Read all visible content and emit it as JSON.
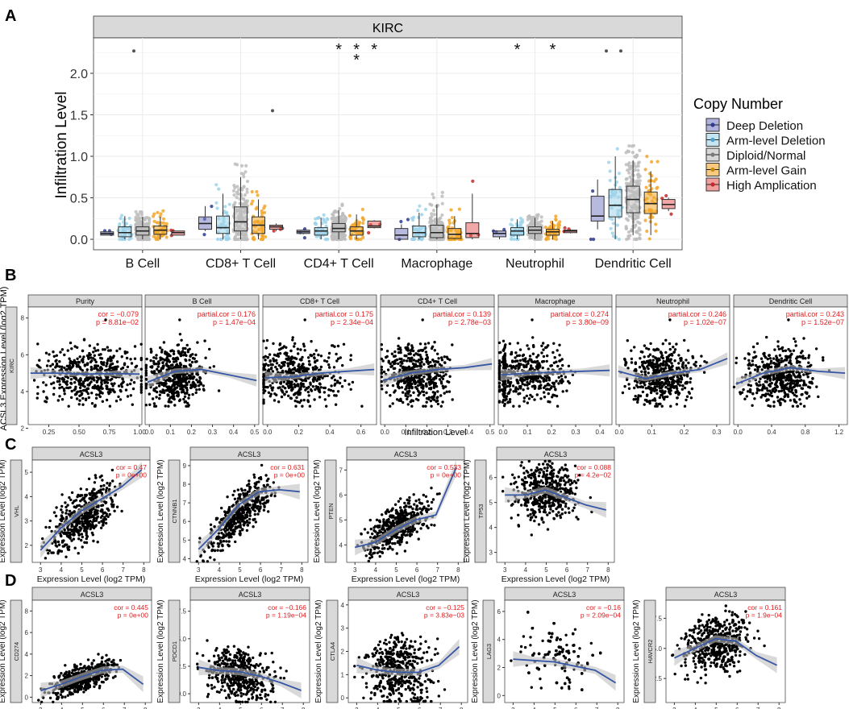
{
  "colors": {
    "strip": "#d9d9d9",
    "grid": "#ebebeb",
    "point": "#000000",
    "fit": "#3656a6",
    "ci": "#bfbfbf",
    "cor": "#e31a1c",
    "copy": [
      "#7b7fc4",
      "#9ed3ea",
      "#bdbdbd",
      "#f2a72c",
      "#e8605d"
    ],
    "copy_dark": [
      "#2f3b8f",
      "#4fa3c9",
      "#7a7a7a",
      "#c98a10",
      "#c4282b"
    ]
  },
  "panel_a": {
    "letter": "A",
    "strip": "KIRC",
    "ylabel": "Infiltration Level",
    "yticks": [
      "0.0",
      "0.5",
      "1.0",
      "1.5",
      "2.0"
    ],
    "legend_title": "Copy Number",
    "legend": [
      "Deep Deletion",
      "Arm-level Deletion",
      "Diploid/Normal",
      "Arm-level Gain",
      "High Amplication"
    ],
    "star": "*",
    "cells": [
      {
        "name": "B Cell",
        "stars": [],
        "boxes": [
          {
            "q1": 0.05,
            "med": 0.07,
            "q3": 0.09,
            "lo": 0.05,
            "hi": 0.09
          },
          {
            "q1": 0.03,
            "med": 0.08,
            "q3": 0.15,
            "lo": 0.0,
            "hi": 0.28
          },
          {
            "q1": 0.05,
            "med": 0.1,
            "q3": 0.15,
            "lo": 0.0,
            "hi": 0.27
          },
          {
            "q1": 0.06,
            "med": 0.11,
            "q3": 0.16,
            "lo": 0.0,
            "hi": 0.27
          },
          {
            "q1": 0.05,
            "med": 0.08,
            "q3": 0.1,
            "lo": 0.05,
            "hi": 0.1
          }
        ]
      },
      {
        "name": "CD8+ T Cell",
        "stars": [],
        "boxes": [
          {
            "q1": 0.12,
            "med": 0.19,
            "q3": 0.27,
            "lo": 0.1,
            "hi": 0.4
          },
          {
            "q1": 0.07,
            "med": 0.14,
            "q3": 0.28,
            "lo": 0.0,
            "hi": 0.55
          },
          {
            "q1": 0.1,
            "med": 0.21,
            "q3": 0.39,
            "lo": 0.0,
            "hi": 0.75
          },
          {
            "q1": 0.07,
            "med": 0.17,
            "q3": 0.27,
            "lo": 0.0,
            "hi": 0.48
          },
          {
            "q1": 0.12,
            "med": 0.15,
            "q3": 0.17,
            "lo": 0.1,
            "hi": 0.19
          }
        ]
      },
      {
        "name": "CD4+ T Cell",
        "stars": [
          {
            "box": 3,
            "n": 1
          },
          {
            "box": 4,
            "n": 2
          },
          {
            "box": 5,
            "n": 1
          }
        ],
        "boxes": [
          {
            "q1": 0.07,
            "med": 0.09,
            "q3": 0.11,
            "lo": 0.06,
            "hi": 0.12
          },
          {
            "q1": 0.05,
            "med": 0.1,
            "q3": 0.14,
            "lo": 0.0,
            "hi": 0.26
          },
          {
            "q1": 0.09,
            "med": 0.13,
            "q3": 0.19,
            "lo": 0.0,
            "hi": 0.35
          },
          {
            "q1": 0.05,
            "med": 0.1,
            "q3": 0.15,
            "lo": 0.0,
            "hi": 0.3
          },
          {
            "q1": 0.14,
            "med": 0.16,
            "q3": 0.22,
            "lo": 0.13,
            "hi": 0.23
          }
        ]
      },
      {
        "name": "Macrophage",
        "stars": [],
        "boxes": [
          {
            "q1": 0.0,
            "med": 0.05,
            "q3": 0.13,
            "lo": 0.0,
            "hi": 0.18
          },
          {
            "q1": 0.03,
            "med": 0.08,
            "q3": 0.16,
            "lo": 0.0,
            "hi": 0.32
          },
          {
            "q1": 0.02,
            "med": 0.08,
            "q3": 0.17,
            "lo": 0.0,
            "hi": 0.42
          },
          {
            "q1": 0.01,
            "med": 0.06,
            "q3": 0.13,
            "lo": 0.0,
            "hi": 0.28
          },
          {
            "q1": 0.02,
            "med": 0.07,
            "q3": 0.2,
            "lo": 0.0,
            "hi": 0.55
          }
        ]
      },
      {
        "name": "Neutrophil",
        "stars": [
          {
            "box": 2,
            "n": 1
          },
          {
            "box": 4,
            "n": 1
          }
        ],
        "boxes": [
          {
            "q1": 0.03,
            "med": 0.07,
            "q3": 0.1,
            "lo": 0.0,
            "hi": 0.1
          },
          {
            "q1": 0.05,
            "med": 0.1,
            "q3": 0.14,
            "lo": 0.0,
            "hi": 0.24
          },
          {
            "q1": 0.07,
            "med": 0.11,
            "q3": 0.15,
            "lo": 0.0,
            "hi": 0.26
          },
          {
            "q1": 0.05,
            "med": 0.09,
            "q3": 0.12,
            "lo": 0.0,
            "hi": 0.22
          },
          {
            "q1": 0.08,
            "med": 0.1,
            "q3": 0.11,
            "lo": 0.07,
            "hi": 0.12
          }
        ]
      },
      {
        "name": "Dendritic Cell",
        "stars": [],
        "boxes": [
          {
            "q1": 0.22,
            "med": 0.28,
            "q3": 0.52,
            "lo": 0.12,
            "hi": 0.72
          },
          {
            "q1": 0.27,
            "med": 0.41,
            "q3": 0.6,
            "lo": 0.0,
            "hi": 1.0
          },
          {
            "q1": 0.32,
            "med": 0.48,
            "q3": 0.64,
            "lo": 0.05,
            "hi": 0.95
          },
          {
            "q1": 0.31,
            "med": 0.43,
            "q3": 0.57,
            "lo": 0.05,
            "hi": 0.82
          },
          {
            "q1": 0.37,
            "med": 0.42,
            "q3": 0.48,
            "lo": 0.34,
            "hi": 0.5
          }
        ]
      }
    ]
  },
  "panel_b": {
    "letter": "B",
    "ylabel": "ACSL3 Expression Level (log2 TPM)",
    "side": "KIRC",
    "xlabel": "Infiltration Level",
    "yticks": [
      "2",
      "4",
      "6",
      "8"
    ],
    "facets": [
      {
        "title": "Purity",
        "cor": "cor = −0.079",
        "p": "p = 8.81e−02",
        "xticks": [
          "0.25",
          "0.50",
          "0.75",
          "1.00"
        ],
        "xmin": 0.08,
        "xmax": 1.02,
        "xc": 0.6,
        "xs": 0.2,
        "curve": [
          5.0,
          5.0,
          4.95,
          4.98,
          4.95
        ]
      },
      {
        "title": "B Cell",
        "cor": "partial.cor = 0.176",
        "p": "p = 1.47e−04",
        "xticks": [
          "0.0",
          "0.1",
          "0.2",
          "0.3",
          "0.4",
          "0.5"
        ],
        "xmin": -0.02,
        "xmax": 0.52,
        "xc": 0.12,
        "xs": 0.07,
        "curve": [
          4.5,
          5.1,
          5.2,
          4.9,
          4.6
        ]
      },
      {
        "title": "CD8+ T Cell",
        "cor": "partial.cor = 0.175",
        "p": "p = 2.34e−04",
        "xticks": [
          "0.0",
          "0.2",
          "0.4",
          "0.6"
        ],
        "xmin": -0.03,
        "xmax": 0.7,
        "xc": 0.2,
        "xs": 0.14,
        "curve": [
          4.75,
          4.8,
          5.0,
          5.1,
          5.2
        ]
      },
      {
        "title": "CD4+ T Cell",
        "cor": "partial.cor = 0.139",
        "p": "p = 2.78e−03",
        "xticks": [
          "0.0",
          "0.1",
          "0.2",
          "0.3",
          "0.4",
          "0.5"
        ],
        "xmin": -0.02,
        "xmax": 0.52,
        "xc": 0.15,
        "xs": 0.08,
        "curve": [
          4.6,
          5.0,
          5.2,
          5.3,
          5.5
        ]
      },
      {
        "title": "Macrophage",
        "cor": "partial.cor = 0.274",
        "p": "p = 3.80e−09",
        "xticks": [
          "0.0",
          "0.1",
          "0.2",
          "0.3",
          "0.4"
        ],
        "xmin": -0.02,
        "xmax": 0.45,
        "xc": 0.1,
        "xs": 0.08,
        "curve": [
          4.9,
          5.0,
          5.05,
          5.1,
          5.15
        ]
      },
      {
        "title": "Neutrophil",
        "cor": "partial.cor = 0.246",
        "p": "p = 1.02e−07",
        "xticks": [
          "0.0",
          "0.1",
          "0.2",
          "0.3"
        ],
        "xmin": -0.01,
        "xmax": 0.34,
        "xc": 0.13,
        "xs": 0.05,
        "curve": [
          5.1,
          4.7,
          5.0,
          5.2,
          5.8
        ]
      },
      {
        "title": "Dendritic Cell",
        "cor": "partial.cor = 0.243",
        "p": "p = 1.52e−07",
        "xticks": [
          "0.0",
          "0.4",
          "0.8",
          "1.2"
        ],
        "xmin": -0.05,
        "xmax": 1.3,
        "xc": 0.5,
        "xs": 0.2,
        "curve": [
          4.4,
          5.0,
          5.3,
          5.1,
          5.0
        ]
      }
    ]
  },
  "panel_c": {
    "letter": "C",
    "ylabel": "Expression Level (log2 TPM)",
    "xlabel": "Expression Level (log2 TPM)",
    "strip": "ACSL3",
    "xticks": [
      "3",
      "4",
      "5",
      "6",
      "7",
      "8"
    ],
    "plots": [
      {
        "gene": "VHL",
        "cor": "cor = 0.47",
        "p": "p = 0e+00",
        "yticks": [
          "2",
          "3",
          "4",
          "5"
        ],
        "ymin": 1.3,
        "ymax": 5.5,
        "slope": 0.55,
        "icept": 0.4,
        "noise": 0.55,
        "curve": [
          1.8,
          2.7,
          3.4,
          3.9,
          4.4,
          5.1
        ]
      },
      {
        "gene": "CTNNB1",
        "cor": "cor = 0.631",
        "p": "p = 0e+00",
        "yticks": [
          "4",
          "5",
          "6",
          "7",
          "8",
          "9"
        ],
        "ymin": 3.8,
        "ymax": 9.3,
        "slope": 1.05,
        "icept": 1.2,
        "noise": 0.55,
        "curve": [
          4.5,
          5.6,
          6.9,
          7.6,
          7.7,
          7.6
        ]
      },
      {
        "gene": "PTEN",
        "cor": "cor = 0.533",
        "p": "p = 0e+00",
        "yticks": [
          "4",
          "5",
          "6",
          "7"
        ],
        "ymin": 3.3,
        "ymax": 7.4,
        "slope": 0.45,
        "icept": 2.5,
        "noise": 0.4,
        "curve": [
          3.9,
          4.1,
          4.6,
          5.0,
          5.2,
          7.1
        ]
      },
      {
        "gene": "TP53",
        "cor": "cor = 0.088",
        "p": "p = 4.2e−02",
        "yticks": [
          "3",
          "4",
          "5",
          "6"
        ],
        "ymin": 2.6,
        "ymax": 6.7,
        "slope": 0.05,
        "icept": 5.2,
        "noise": 0.55,
        "curve": [
          5.3,
          5.3,
          5.5,
          5.2,
          4.9,
          4.7
        ]
      }
    ]
  },
  "panel_d": {
    "letter": "D",
    "ylabel": "Expression Level (log2 TPM)",
    "xlabel": "Expression Level (log2 TPM)",
    "strip": "ACSL3",
    "xticks": [
      "3",
      "4",
      "5",
      "6",
      "7",
      "8"
    ],
    "plots": [
      {
        "gene": "CD274",
        "cor": "cor = 0.445",
        "p": "p = 0e+00",
        "yticks": [
          "0",
          "2",
          "4",
          "6",
          "8"
        ],
        "ymin": -0.5,
        "ymax": 9.0,
        "slope": 0.75,
        "icept": -2.0,
        "noise": 0.6,
        "curve": [
          0.6,
          1.2,
          1.9,
          2.5,
          2.6,
          1.2
        ]
      },
      {
        "gene": "PDCD1",
        "cor": "cor = −0.166",
        "p": "p = 1.19e−04",
        "yticks": [
          "0.0",
          "2.5",
          "5.0",
          "7.5"
        ],
        "ymin": -0.8,
        "ymax": 8.5,
        "slope": -0.3,
        "icept": 3.3,
        "noise": 1.1,
        "curve": [
          2.4,
          2.1,
          2.0,
          1.6,
          1.0,
          0.3
        ]
      },
      {
        "gene": "CTLA4",
        "cor": "cor = −0.125",
        "p": "p = 3.83e−03",
        "yticks": [
          "0",
          "1",
          "2",
          "3",
          "4"
        ],
        "ymin": -0.2,
        "ymax": 4.2,
        "slope": -0.1,
        "icept": 1.6,
        "noise": 0.7,
        "curve": [
          1.4,
          1.2,
          1.1,
          1.1,
          1.4,
          2.2
        ]
      },
      {
        "gene": "LAG3",
        "cor": "cor = −0.16",
        "p": "p = 2.09e−04",
        "yticks": [
          "0",
          "2",
          "4",
          "6"
        ],
        "ymin": -0.5,
        "ymax": 6.8,
        "slope": -0.2,
        "icept": 3.5,
        "noise": 1.1,
        "curve": [
          2.6,
          2.5,
          2.4,
          2.1,
          1.8,
          0.9
        ]
      },
      {
        "gene": "HAVCR2",
        "cor": "cor = 0.161",
        "p": "p = 1.9e−04",
        "yticks": [
          "2.5",
          "5.0",
          "7.5"
        ],
        "ymin": 0.5,
        "ymax": 9.0,
        "slope": 0.5,
        "icept": 2.9,
        "noise": 1.1,
        "curve": [
          4.2,
          5.0,
          5.8,
          5.6,
          4.4,
          3.6
        ]
      }
    ]
  }
}
